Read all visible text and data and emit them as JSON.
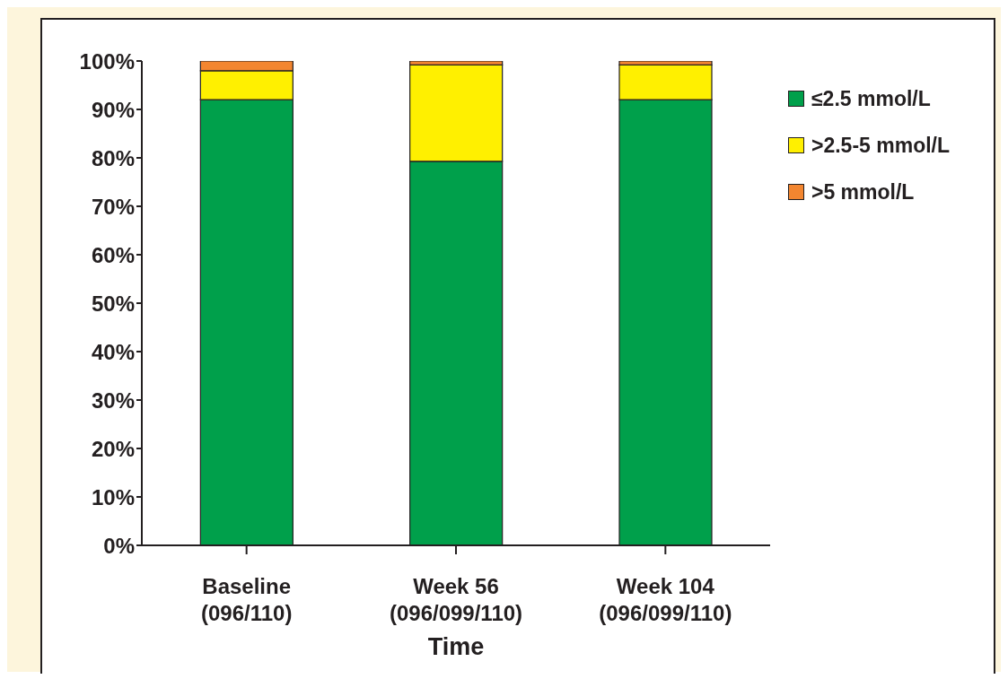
{
  "chart_data": {
    "type": "bar",
    "stacked": true,
    "xlabel": "Time",
    "categories": [
      "Baseline\n(096/110)",
      "Week 56\n(096/099/110)",
      "Week 104\n(096/099/110)"
    ],
    "series": [
      {
        "name": "≤2.5 mmol/L",
        "color": "#00a04b",
        "values": [
          92,
          79.3,
          92
        ]
      },
      {
        "name": ">2.5-5 mmol/L",
        "color": "#fff000",
        "values": [
          6,
          19.9,
          7.2
        ]
      },
      {
        "name": ">5 mmol/L",
        "color": "#f38630",
        "values": [
          2,
          0.8,
          0.8
        ]
      }
    ],
    "ylim": [
      0,
      100
    ],
    "yticks": [
      {
        "value": 0,
        "label": "0%"
      },
      {
        "value": 10,
        "label": "10%"
      },
      {
        "value": 20,
        "label": "20%"
      },
      {
        "value": 30,
        "label": "30%"
      },
      {
        "value": 40,
        "label": "40%"
      },
      {
        "value": 50,
        "label": "50%"
      },
      {
        "value": 60,
        "label": "60%"
      },
      {
        "value": 70,
        "label": "70%"
      },
      {
        "value": 80,
        "label": "80%"
      },
      {
        "value": 90,
        "label": "90%"
      },
      {
        "value": 100,
        "label": "100%"
      }
    ],
    "grid": false,
    "legend": "right"
  }
}
